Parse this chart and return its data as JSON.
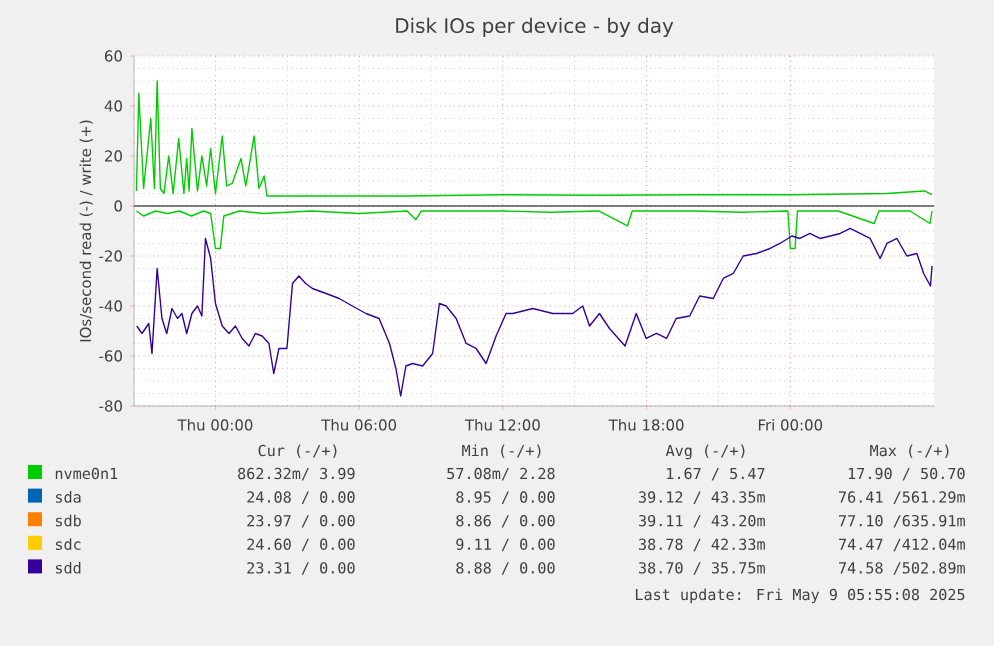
{
  "chart_data": {
    "type": "line",
    "title": "Disk IOs per device - by day",
    "ylabel": "IOs/second read (-) / write (+)",
    "xlim": [
      "2025-05-07T20:36",
      "2025-05-09T06:00"
    ],
    "ylim": [
      -80,
      60
    ],
    "xticks": [
      {
        "value": "2025-05-08T00:00",
        "label": "Thu 00:00"
      },
      {
        "value": "2025-05-08T06:00",
        "label": "Thu 06:00"
      },
      {
        "value": "2025-05-08T12:00",
        "label": "Thu 12:00"
      },
      {
        "value": "2025-05-08T18:00",
        "label": "Thu 18:00"
      },
      {
        "value": "2025-05-09T00:00",
        "label": "Fri 00:00"
      }
    ],
    "yticks": [
      -80,
      -60,
      -40,
      -20,
      0,
      20,
      40,
      60
    ],
    "grid": true,
    "legend": "bottom",
    "ref_lines": [
      {
        "axis": "y",
        "value": 0,
        "color": "#000000"
      }
    ],
    "x": [
      "2025-05-07T20:43",
      "2025-05-07T20:56",
      "2025-05-07T21:13",
      "2025-05-07T21:21",
      "2025-05-07T21:34",
      "2025-05-07T21:46",
      "2025-05-07T21:58",
      "2025-05-07T22:11",
      "2025-05-07T22:25",
      "2025-05-07T22:36",
      "2025-05-07T22:48",
      "2025-05-07T23:01",
      "2025-05-07T23:15",
      "2025-05-07T23:26",
      "2025-05-07T23:35",
      "2025-05-07T23:48",
      "2025-05-08T00:00",
      "2025-05-08T00:17",
      "2025-05-08T00:34",
      "2025-05-08T00:50",
      "2025-05-08T01:07",
      "2025-05-08T01:24",
      "2025-05-08T01:40",
      "2025-05-08T01:57",
      "2025-05-08T02:14",
      "2025-05-08T02:26",
      "2025-05-08T02:39",
      "2025-05-08T02:59",
      "2025-05-08T03:13",
      "2025-05-08T03:29",
      "2025-05-08T03:46",
      "2025-05-08T04:03",
      "2025-05-08T04:37",
      "2025-05-08T05:10",
      "2025-05-08T05:43",
      "2025-05-08T06:17",
      "2025-05-08T06:50",
      "2025-05-08T07:16",
      "2025-05-08T07:32",
      "2025-05-08T07:44",
      "2025-05-08T07:57",
      "2025-05-08T08:14",
      "2025-05-08T08:39",
      "2025-05-08T09:04",
      "2025-05-08T09:21",
      "2025-05-08T09:38",
      "2025-05-08T10:03",
      "2025-05-08T10:28",
      "2025-05-08T10:53",
      "2025-05-08T11:18",
      "2025-05-08T11:43",
      "2025-05-08T12:08",
      "2025-05-08T12:25",
      "2025-05-08T13:15",
      "2025-05-08T14:05",
      "2025-05-08T14:55",
      "2025-05-08T15:20",
      "2025-05-08T15:37",
      "2025-05-08T16:02",
      "2025-05-08T16:27",
      "2025-05-08T17:06",
      "2025-05-08T17:34",
      "2025-05-08T17:59",
      "2025-05-08T18:25",
      "2025-05-08T18:50",
      "2025-05-08T19:14",
      "2025-05-08T19:48",
      "2025-05-08T20:13",
      "2025-05-08T20:47",
      "2025-05-08T21:12",
      "2025-05-08T21:37",
      "2025-05-08T22:02",
      "2025-05-08T22:35",
      "2025-05-08T23:09",
      "2025-05-08T23:34",
      "2025-05-09T00:04",
      "2025-05-09T00:24",
      "2025-05-09T00:49",
      "2025-05-09T01:14",
      "2025-05-09T01:40",
      "2025-05-09T02:05",
      "2025-05-09T02:30",
      "2025-05-09T02:55",
      "2025-05-09T03:20",
      "2025-05-09T03:45",
      "2025-05-09T04:02",
      "2025-05-09T04:27",
      "2025-05-09T04:52",
      "2025-05-09T05:17",
      "2025-05-09T05:34",
      "2025-05-09T05:51",
      "2025-05-09T05:55"
    ],
    "series": [
      {
        "name": "nvme0n1",
        "color": "#00cc00",
        "x": [
          "2025-05-07T20:42",
          "2025-05-07T20:48",
          "2025-05-07T21:00",
          "2025-05-07T21:18",
          "2025-05-07T21:27",
          "2025-05-07T21:34",
          "2025-05-07T21:42",
          "2025-05-07T21:51",
          "2025-05-07T22:03",
          "2025-05-07T22:14",
          "2025-05-07T22:28",
          "2025-05-07T22:41",
          "2025-05-07T22:48",
          "2025-05-07T22:54",
          "2025-05-07T23:01",
          "2025-05-07T23:15",
          "2025-05-07T23:26",
          "2025-05-07T23:38",
          "2025-05-07T23:48",
          "2025-05-08T00:00",
          "2025-05-08T00:17",
          "2025-05-08T00:28",
          "2025-05-08T00:42",
          "2025-05-08T01:04",
          "2025-05-08T01:16",
          "2025-05-08T01:37",
          "2025-05-08T01:49",
          "2025-05-08T02:02",
          "2025-05-08T02:09",
          "2025-05-08T04:00",
          "2025-05-08T08:00",
          "2025-05-08T12:00",
          "2025-05-08T16:00",
          "2025-05-08T20:00",
          "2025-05-09T00:00",
          "2025-05-09T04:00",
          "2025-05-09T05:36",
          "2025-05-09T05:55"
        ],
        "values": [
          6,
          45,
          7,
          35,
          7,
          50,
          7,
          5,
          20,
          5,
          27,
          5,
          19,
          6,
          31,
          6,
          20,
          8,
          23,
          5,
          28,
          8,
          9,
          19,
          8,
          28,
          7,
          12,
          4,
          4,
          4,
          4.5,
          4.3,
          4.5,
          4.5,
          5,
          6,
          4.5
        ]
      },
      {
        "color": "#00cc00",
        "x": [
          "2025-05-07T20:42",
          "2025-05-07T21:00",
          "2025-05-07T21:30",
          "2025-05-07T22:00",
          "2025-05-07T22:30",
          "2025-05-07T23:00",
          "2025-05-07T23:30",
          "2025-05-07T23:48",
          "2025-05-08T00:00",
          "2025-05-08T00:12",
          "2025-05-08T00:21",
          "2025-05-08T01:00",
          "2025-05-08T02:00",
          "2025-05-08T04:00",
          "2025-05-08T06:00",
          "2025-05-08T08:00",
          "2025-05-08T08:22",
          "2025-05-08T08:36",
          "2025-05-08T12:00",
          "2025-05-08T14:00",
          "2025-05-08T16:00",
          "2025-05-08T17:12",
          "2025-05-08T17:24",
          "2025-05-08T20:00",
          "2025-05-08T22:00",
          "2025-05-08T23:54",
          "2025-05-09T00:00",
          "2025-05-09T00:12",
          "2025-05-09T00:18",
          "2025-05-09T02:00",
          "2025-05-09T03:30",
          "2025-05-09T03:42",
          "2025-05-09T05:00",
          "2025-05-09T05:50",
          "2025-05-09T05:55"
        ],
        "values": [
          -2,
          -4,
          -2,
          -3,
          -2,
          -4,
          -2,
          -3,
          -17,
          -17,
          -4,
          -2,
          -3,
          -2,
          -3,
          -2,
          -5.5,
          -2,
          -2,
          -2.5,
          -2,
          -8,
          -2,
          -2,
          -2.5,
          -2,
          -17,
          -17,
          -2,
          -2,
          -7,
          -2,
          -2,
          -7,
          -2
        ]
      },
      {
        "name": "sda",
        "color": "#0066b3",
        "values": [
          null,
          null,
          null,
          null,
          null,
          null,
          null,
          null,
          null,
          null,
          null,
          null,
          null,
          null,
          null,
          null,
          null,
          null,
          null,
          null,
          null,
          null,
          null,
          null,
          null,
          null,
          null,
          null,
          null,
          null,
          null,
          null,
          null,
          null,
          null,
          null,
          null,
          null,
          null,
          null,
          null,
          null,
          null,
          null,
          null,
          null,
          null,
          null,
          null,
          null,
          null,
          null,
          null,
          null,
          null,
          null,
          null,
          null,
          null,
          null,
          null,
          null,
          null,
          null,
          null,
          null,
          null,
          null,
          null,
          null,
          null,
          null,
          null,
          null,
          null,
          null,
          null,
          null,
          null,
          null,
          null,
          null,
          null,
          null,
          null,
          null,
          null,
          null,
          null,
          null,
          null,
          null
        ]
      },
      {
        "name": "sdb",
        "color": "#ff8000",
        "values": [
          null,
          null,
          null,
          null,
          null,
          null,
          null,
          null,
          null,
          null,
          null,
          null,
          null,
          null,
          null,
          null,
          null,
          null,
          null,
          null,
          null,
          null,
          null,
          null,
          null,
          null,
          null,
          null,
          null,
          null,
          null,
          null,
          null,
          null,
          null,
          null,
          null,
          null,
          null,
          null,
          null,
          null,
          null,
          null,
          null,
          null,
          null,
          null,
          null,
          null,
          null,
          null,
          null,
          null,
          null,
          null,
          null,
          null,
          null,
          null,
          null,
          null,
          null,
          null,
          null,
          null,
          null,
          null,
          null,
          null,
          null,
          null,
          null,
          null,
          null,
          null,
          null,
          null,
          null,
          null,
          null,
          null,
          null,
          null,
          null,
          null,
          null,
          null,
          null,
          null,
          null,
          null
        ]
      },
      {
        "name": "sdc",
        "color": "#ffcc00",
        "values": [
          null,
          null,
          null,
          null,
          null,
          null,
          null,
          null,
          null,
          null,
          null,
          null,
          null,
          null,
          null,
          null,
          null,
          null,
          null,
          null,
          null,
          null,
          null,
          null,
          null,
          null,
          null,
          null,
          null,
          null,
          null,
          null,
          null,
          null,
          null,
          null,
          null,
          null,
          null,
          null,
          null,
          null,
          null,
          null,
          null,
          null,
          null,
          null,
          null,
          null,
          null,
          null,
          null,
          null,
          null,
          null,
          null,
          null,
          null,
          null,
          null,
          null,
          null,
          null,
          null,
          null,
          null,
          null,
          null,
          null,
          null,
          null,
          null,
          null,
          null,
          null,
          null,
          null,
          null,
          null,
          null,
          null,
          null,
          null,
          null,
          null,
          null,
          null,
          null,
          null,
          null,
          null
        ]
      },
      {
        "name": "sdd",
        "color": "#330099",
        "values": [
          -48,
          -51,
          -47,
          -59,
          -25,
          -45,
          -51,
          -41,
          -45,
          -43,
          -51,
          -43,
          -40,
          -44,
          -13,
          -21,
          -39,
          -48,
          -51,
          -48,
          -53,
          -56,
          -51,
          -52,
          -55,
          -67,
          -57,
          -57,
          -31,
          -28,
          -31,
          -33,
          -35,
          -37,
          -40,
          -43,
          -45,
          -55,
          -65,
          -76,
          -64,
          -63,
          -64,
          -59,
          -39,
          -40,
          -45,
          -55,
          -57,
          -63,
          -52,
          -43,
          -43,
          -41,
          -43,
          -43,
          -40,
          -48,
          -43,
          -49,
          -56,
          -43,
          -53,
          -51,
          -53,
          -45,
          -44,
          -36,
          -37,
          -29,
          -27,
          -20,
          -19,
          -17,
          -15,
          -12,
          -13,
          -11,
          -13,
          -12,
          -11,
          -9,
          -11,
          -13,
          -21,
          -15,
          -13,
          -20,
          -19,
          -27,
          -32,
          -24
        ]
      }
    ],
    "annotations": [
      "Cur (-/+)",
      "Min (-/+)",
      "Avg (-/+)",
      "Max (-/+)",
      "862.32m/  3.99",
      "57.08m/  2.28",
      "1.67 /  5.47",
      "17.90 / 50.70",
      "24.08 /  0.00",
      "8.95 /  0.00",
      "39.12 / 43.35m",
      "76.41 /561.29m",
      "23.97 /  0.00",
      "8.86 /  0.00",
      "39.11 / 43.20m",
      "77.10 /635.91m",
      "24.60 /  0.00",
      "9.11 /  0.00",
      "38.78 / 42.33m",
      "74.47 /412.04m",
      "23.31 /  0.00",
      "8.88 /  0.00",
      "38.70 / 35.75m",
      "74.58 /502.89m",
      "Last update: Fri May  9 05:55:08 2025"
    ]
  }
}
